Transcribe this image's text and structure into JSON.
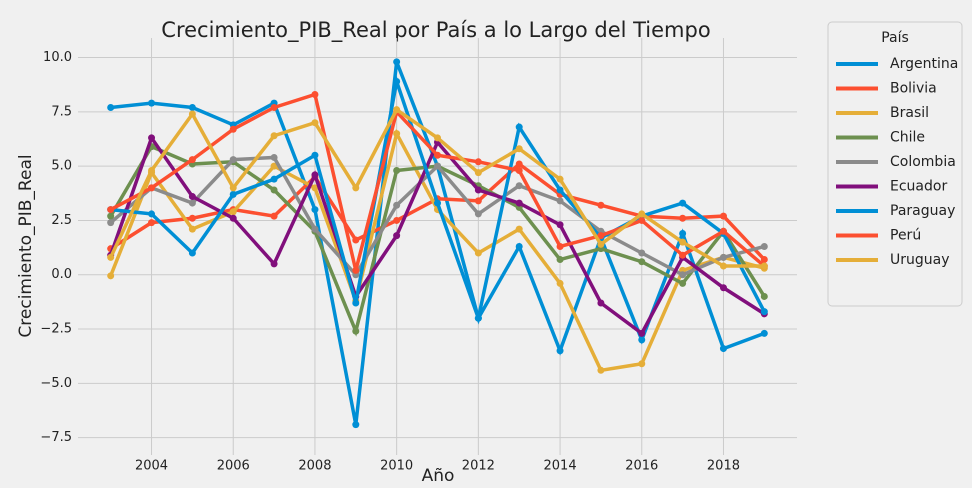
{
  "chart_data": {
    "type": "line",
    "title": "Crecimiento_PIB_Real por País a lo Largo del Tiempo",
    "xlabel": "Año",
    "ylabel": "Crecimiento_PIB_Real",
    "legend_title": "País",
    "x": [
      2003,
      2004,
      2005,
      2006,
      2007,
      2008,
      2009,
      2010,
      2011,
      2012,
      2013,
      2014,
      2015,
      2016,
      2017,
      2018,
      2019
    ],
    "series": [
      {
        "name": "Argentina",
        "color": "#008fd5",
        "values": [
          7.7,
          7.9,
          7.7,
          6.9,
          7.9,
          3.0,
          -6.9,
          9.8,
          5.0,
          -2.0,
          1.3,
          -3.5,
          1.7,
          -3.0,
          1.9,
          -3.4,
          -2.7
        ]
      },
      {
        "name": "Bolivia",
        "color": "#fc4f30",
        "values": [
          1.2,
          2.4,
          2.6,
          3.0,
          2.7,
          4.5,
          1.6,
          2.5,
          3.5,
          3.4,
          5.1,
          3.7,
          3.2,
          2.7,
          2.6,
          2.7,
          0.7
        ]
      },
      {
        "name": "Brasil",
        "color": "#e5ae38",
        "values": [
          -0.05,
          4.7,
          2.1,
          2.9,
          5.0,
          4.0,
          -1.2,
          6.5,
          3.0,
          1.0,
          2.1,
          -0.4,
          -4.4,
          -4.1,
          0.2,
          0.8,
          0.3
        ]
      },
      {
        "name": "Chile",
        "color": "#6d904f",
        "values": [
          2.7,
          5.9,
          5.1,
          5.2,
          3.9,
          2.0,
          -2.6,
          4.8,
          5.0,
          4.1,
          3.1,
          0.7,
          1.2,
          0.6,
          -0.4,
          2.0,
          -1.0
        ]
      },
      {
        "name": "Colombia",
        "color": "#8b8b8b",
        "values": [
          2.4,
          4.0,
          3.3,
          5.3,
          5.4,
          2.1,
          0.0,
          3.2,
          5.0,
          2.8,
          4.1,
          3.4,
          2.0,
          1.0,
          0.0,
          0.8,
          1.3
        ]
      },
      {
        "name": "Ecuador",
        "color": "#810f7c",
        "values": [
          0.9,
          6.3,
          3.6,
          2.6,
          0.5,
          4.6,
          -1.0,
          1.8,
          6.1,
          3.9,
          3.3,
          2.3,
          -1.3,
          -2.7,
          0.8,
          -0.6,
          -1.8
        ]
      },
      {
        "name": "Paraguay",
        "color": "#008fd5",
        "values": [
          3.0,
          2.8,
          1.0,
          3.7,
          4.4,
          5.5,
          -1.3,
          8.9,
          3.3,
          -2.0,
          6.8,
          3.9,
          1.7,
          2.7,
          3.3,
          1.9,
          -1.7
        ]
      },
      {
        "name": "Perú",
        "color": "#fc4f30",
        "values": [
          3.0,
          4.0,
          5.3,
          6.7,
          7.7,
          8.3,
          0.2,
          7.5,
          5.5,
          5.2,
          4.8,
          1.3,
          1.8,
          2.5,
          0.9,
          2.0,
          0.4
        ]
      },
      {
        "name": "Uruguay",
        "color": "#e5ae38",
        "values": [
          0.8,
          4.8,
          7.4,
          4.0,
          6.4,
          7.0,
          4.0,
          7.6,
          6.3,
          4.7,
          5.8,
          4.4,
          1.4,
          2.8,
          1.5,
          0.4,
          0.4
        ]
      }
    ],
    "xlim": [
      2002.2,
      2019.8
    ],
    "ylim": [
      -8.3,
      10.9
    ],
    "xticks": [
      2004,
      2006,
      2008,
      2010,
      2012,
      2014,
      2016,
      2018
    ],
    "yticks": [
      {
        "value": -7.5,
        "label": "−7.5"
      },
      {
        "value": -5,
        "label": "−5.0"
      },
      {
        "value": -2.5,
        "label": "−2.5"
      },
      {
        "value": 0,
        "label": "0.0"
      },
      {
        "value": 2.5,
        "label": "2.5"
      },
      {
        "value": 5,
        "label": "5.0"
      },
      {
        "value": 7.5,
        "label": "7.5"
      },
      {
        "value": 10,
        "label": "10.0"
      }
    ],
    "grid": true,
    "legend": "outside right"
  }
}
